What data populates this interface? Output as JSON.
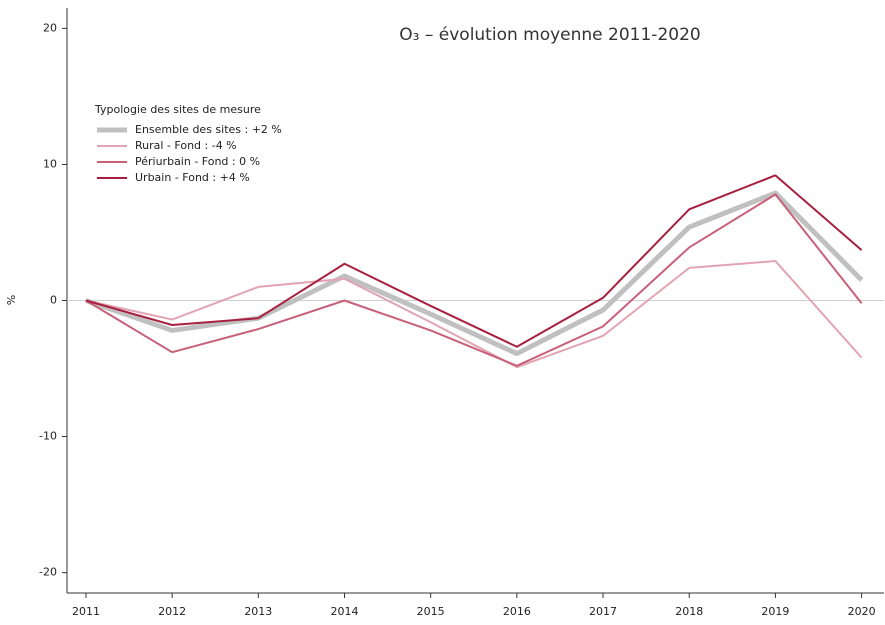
{
  "chart_data": {
    "type": "line",
    "title": "O₃ – évolution moyenne 2011-2020",
    "y_label": "%",
    "legend_title": "Typologie des sites de mesure",
    "legend_position": "upper left",
    "x": [
      2011,
      2012,
      2013,
      2014,
      2015,
      2016,
      2017,
      2018,
      2019,
      2020
    ],
    "xlim": [
      2010.78,
      2020.26
    ],
    "xticks": [
      2011,
      2012,
      2013,
      2014,
      2015,
      2016,
      2017,
      2018,
      2019,
      2020
    ],
    "ylim": [
      -21.5,
      21.5
    ],
    "yticks": [
      -20,
      -10,
      0,
      10,
      20
    ],
    "series": [
      {
        "name": "Ensemble des sites : +2 %",
        "color": "#c0c0c0",
        "width": 5,
        "values": [
          0,
          -2.2,
          -1.3,
          1.8,
          -1.0,
          -3.9,
          -0.7,
          5.4,
          7.9,
          1.5
        ]
      },
      {
        "name": "Rural - Fond : -4 %",
        "color": "#e2a3b3",
        "width": 2,
        "values": [
          0,
          -1.4,
          1.0,
          1.6,
          -1.6,
          -4.9,
          -2.6,
          2.4,
          2.9,
          -4.2
        ]
      },
      {
        "name": "Périurbain - Fond : 0 %",
        "color": "#c8607a",
        "width": 2,
        "values": [
          0,
          -3.8,
          -2.1,
          0,
          -2.2,
          -4.8,
          -1.9,
          3.9,
          7.8,
          -0.2
        ]
      },
      {
        "name": "Urbain - Fond : +4 %",
        "color": "#a8203f",
        "width": 2,
        "values": [
          0,
          -1.8,
          -1.3,
          2.7,
          -0.4,
          -3.4,
          0.2,
          6.7,
          9.2,
          3.7
        ]
      }
    ]
  }
}
